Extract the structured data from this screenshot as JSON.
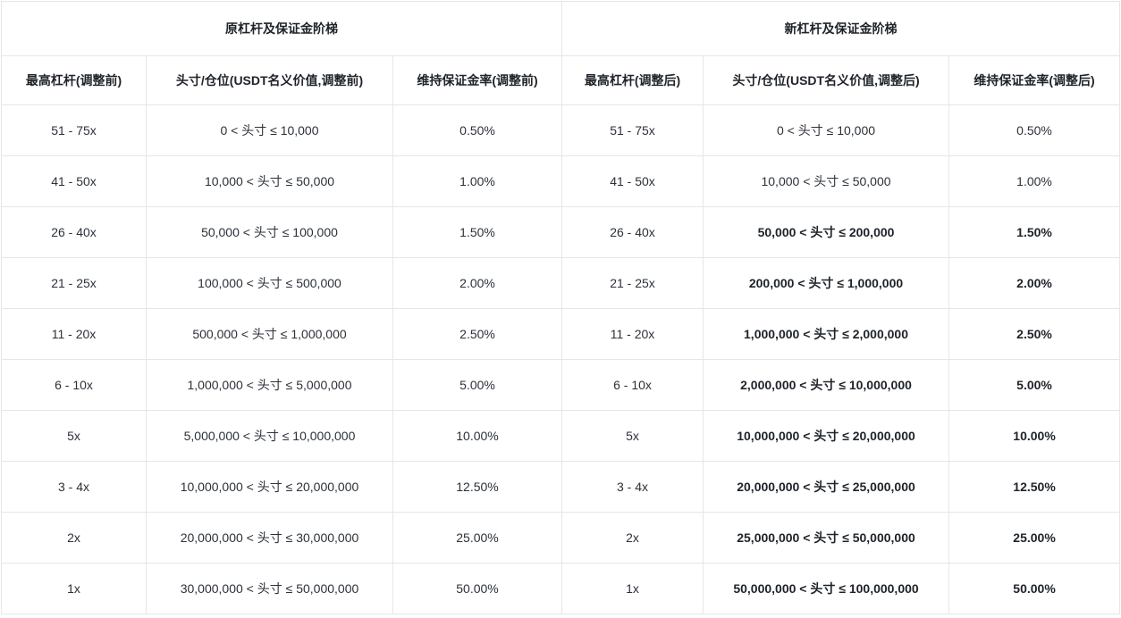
{
  "colors": {
    "text": "#1e2329",
    "text_regular": "#2b3139",
    "border": "#e6e6e6",
    "background": "#ffffff"
  },
  "table": {
    "group_headers": [
      {
        "label": "原杠杆及保证金阶梯"
      },
      {
        "label": "新杠杆及保证金阶梯"
      }
    ],
    "column_headers": [
      "最高杠杆(调整前)",
      "头寸/仓位(USDT名义价值,调整前)",
      "维持保证金率(调整前)",
      "最高杠杆(调整后)",
      "头寸/仓位(USDT名义价值,调整后)",
      "维持保证金率(调整后)"
    ],
    "rows": [
      {
        "cells": [
          "51 - 75x",
          "0 < 头寸 ≤ 10,000",
          "0.50%",
          "51 - 75x",
          "0 < 头寸 ≤ 10,000",
          "0.50%"
        ],
        "changed": false
      },
      {
        "cells": [
          "41 - 50x",
          "10,000 < 头寸 ≤ 50,000",
          "1.00%",
          "41 - 50x",
          "10,000 < 头寸 ≤ 50,000",
          "1.00%"
        ],
        "changed": false
      },
      {
        "cells": [
          "26 - 40x",
          "50,000 < 头寸 ≤ 100,000",
          "1.50%",
          "26 - 40x",
          "50,000 < 头寸 ≤ 200,000",
          "1.50%"
        ],
        "changed": true
      },
      {
        "cells": [
          "21 - 25x",
          "100,000 < 头寸 ≤ 500,000",
          "2.00%",
          "21 - 25x",
          "200,000 < 头寸 ≤ 1,000,000",
          "2.00%"
        ],
        "changed": true
      },
      {
        "cells": [
          "11 - 20x",
          "500,000 < 头寸 ≤ 1,000,000",
          "2.50%",
          "11 - 20x",
          "1,000,000 < 头寸 ≤ 2,000,000",
          "2.50%"
        ],
        "changed": true
      },
      {
        "cells": [
          "6 - 10x",
          "1,000,000 < 头寸 ≤ 5,000,000",
          "5.00%",
          "6 - 10x",
          "2,000,000 < 头寸 ≤ 10,000,000",
          "5.00%"
        ],
        "changed": true
      },
      {
        "cells": [
          "5x",
          "5,000,000 < 头寸 ≤ 10,000,000",
          "10.00%",
          "5x",
          "10,000,000 < 头寸 ≤ 20,000,000",
          "10.00%"
        ],
        "changed": true
      },
      {
        "cells": [
          "3 - 4x",
          "10,000,000 < 头寸 ≤ 20,000,000",
          "12.50%",
          "3 - 4x",
          "20,000,000 < 头寸 ≤ 25,000,000",
          "12.50%"
        ],
        "changed": true
      },
      {
        "cells": [
          "2x",
          "20,000,000 < 头寸 ≤ 30,000,000",
          "25.00%",
          "2x",
          "25,000,000 < 头寸 ≤ 50,000,000",
          "25.00%"
        ],
        "changed": true
      },
      {
        "cells": [
          "1x",
          "30,000,000 < 头寸 ≤ 50,000,000",
          "50.00%",
          "1x",
          "50,000,000 < 头寸 ≤ 100,000,000",
          "50.00%"
        ],
        "changed": true
      }
    ]
  }
}
